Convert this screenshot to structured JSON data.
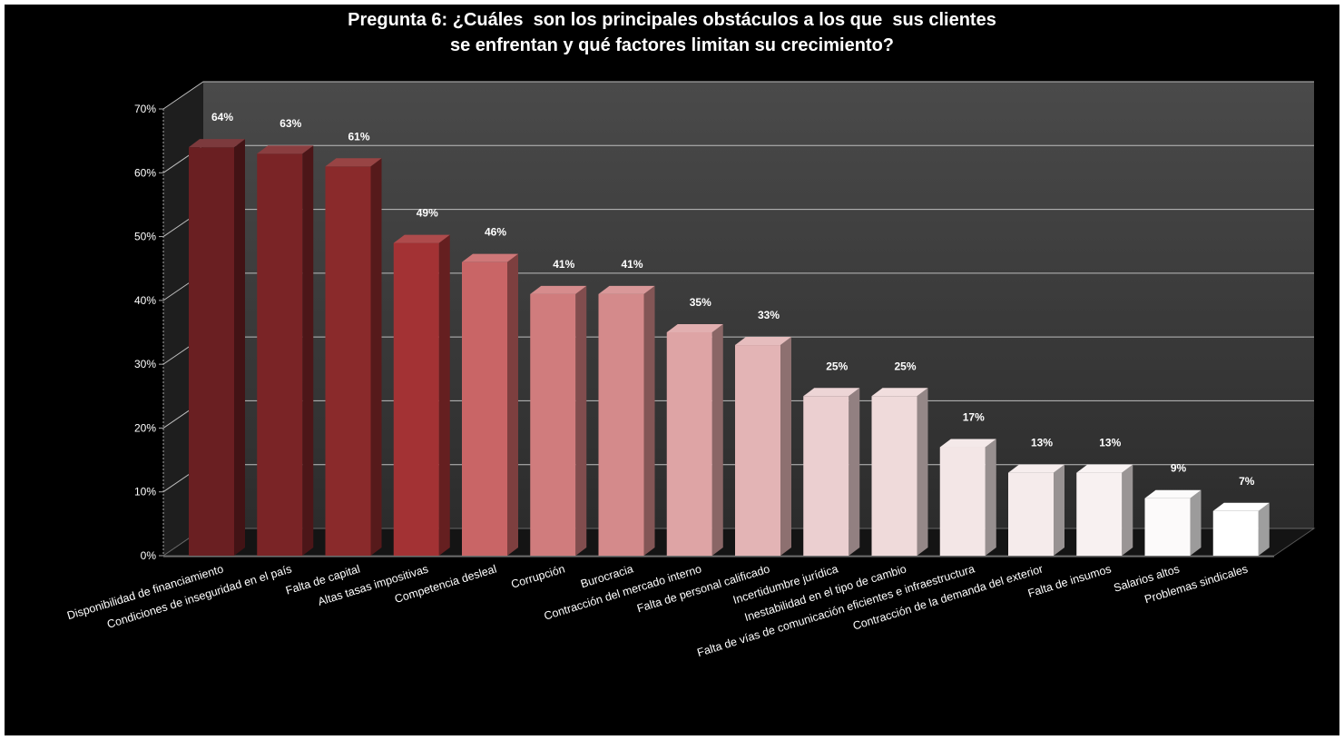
{
  "chart_data": {
    "type": "bar",
    "title_lines": [
      "Pregunta 6: ¿Cuáles  son los principales obstáculos a los que  sus clientes",
      "se enfrentan y qué factores limitan su crecimiento?"
    ],
    "categories": [
      "Disponibilidad de financiamiento",
      "Condiciones de inseguridad en el país",
      "Falta de capital",
      "Altas tasas impositivas",
      "Competencia desleal",
      "Corrupción",
      "Burocracia",
      "Contracción del mercado interno",
      "Falta de personal calificado",
      "Incertidumbre jurídica",
      "Inestabilidad en el tipo de cambio",
      "Falta de vías de comunicación eficientes e infraestructura",
      "Contracción de la demanda del exterior",
      "Falta de insumos",
      "Salarios altos",
      "Problemas sindicales"
    ],
    "values": [
      64,
      63,
      61,
      49,
      46,
      41,
      41,
      35,
      33,
      25,
      25,
      17,
      13,
      13,
      9,
      7
    ],
    "data_labels": [
      "64%",
      "63%",
      "61%",
      "49%",
      "46%",
      "41%",
      "41%",
      "35%",
      "33%",
      "25%",
      "25%",
      "17%",
      "13%",
      "13%",
      "9%",
      "7%"
    ],
    "y_ticks": [
      0,
      10,
      20,
      30,
      40,
      50,
      60,
      70
    ],
    "y_tick_labels": [
      "0%",
      "10%",
      "20%",
      "30%",
      "40%",
      "50%",
      "60%",
      "70%"
    ],
    "ylim": [
      0,
      70
    ],
    "xlabel": "",
    "ylabel": "",
    "grid": true,
    "three_d": true,
    "bar_colors": [
      "#6a1f22",
      "#7a2426",
      "#8a2a2b",
      "#a33234",
      "#c96566",
      "#d07c7d",
      "#d48a8b",
      "#dea4a5",
      "#e3b4b5",
      "#ebcfd0",
      "#efdada",
      "#f3e6e6",
      "#f5ebeb",
      "#f8f1f1",
      "#fcfafa",
      "#ffffff"
    ],
    "background_color": "#000000",
    "plot_wall_color": "#3a3a3a"
  }
}
